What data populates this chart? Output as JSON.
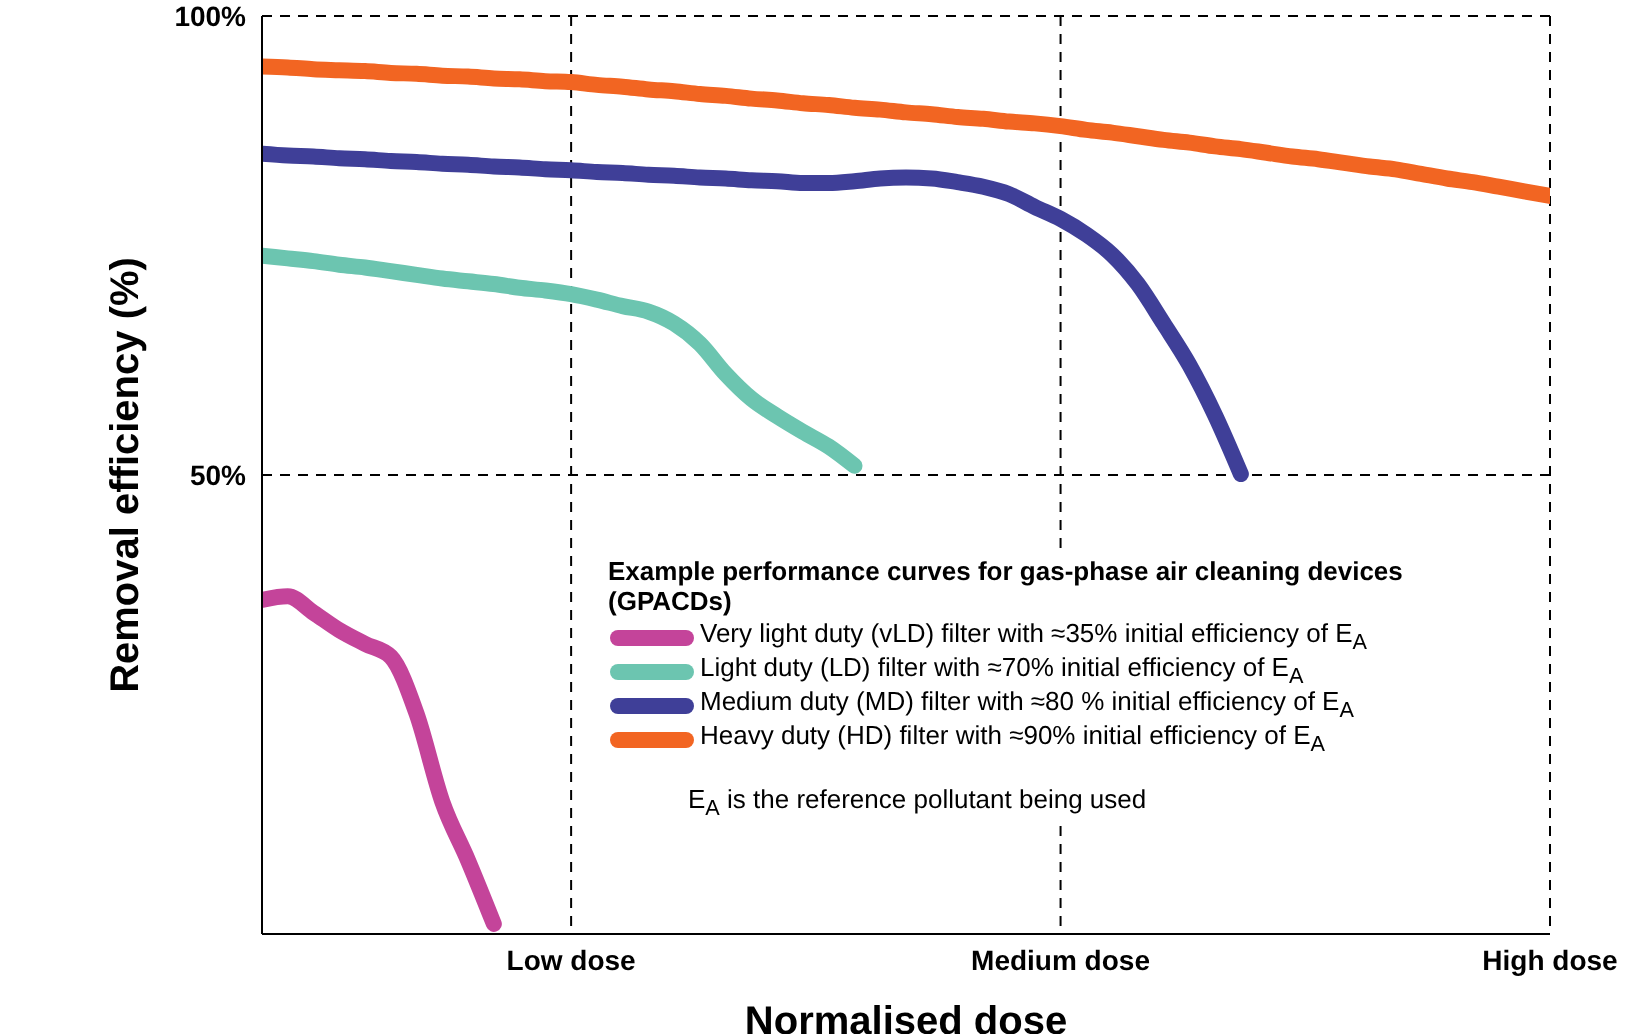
{
  "chart_data": {
    "type": "line",
    "xlabel": "Normalised dose",
    "ylabel": "Removal efficiency (%)",
    "categories": [
      null,
      null,
      null,
      null,
      null,
      null,
      null,
      null,
      null,
      null,
      null,
      null,
      "Low dose",
      null,
      null,
      null,
      null,
      null,
      null,
      null,
      null,
      null,
      null,
      null,
      null,
      null,
      null,
      null,
      null,
      null,
      null,
      "Medium dose",
      null,
      null,
      null,
      null,
      null,
      null,
      null,
      null,
      null,
      null,
      null,
      null,
      null,
      null,
      null,
      null,
      null,
      null,
      "High dose"
    ],
    "ylim": [
      0,
      100
    ],
    "yticks": [
      {
        "value": 50,
        "label": "50%"
      },
      {
        "value": 100,
        "label": "100%"
      }
    ],
    "grid": true,
    "legend": "bottom right",
    "legend_title": "Example performance curves for gas-phase air cleaning devices (GPACDs)",
    "annotations": [
      "E$_{A}$ is the reference pollutant being used"
    ],
    "series": [
      {
        "name": "Very light duty (vLD) filter with ≈35% initial efficiency of E$_{A}$",
        "color": "#c4449a",
        "values": [
          36.4,
          36.8,
          35,
          33.1,
          31.6,
          30.2,
          24,
          14.4,
          8,
          1.1,
          null,
          null,
          null,
          null,
          null,
          null,
          null,
          null,
          null,
          null,
          null,
          null,
          null,
          null,
          null,
          null,
          null,
          null,
          null,
          null,
          null,
          null,
          null,
          null,
          null,
          null,
          null,
          null,
          null,
          null,
          null,
          null,
          null,
          null,
          null,
          null,
          null,
          null,
          null,
          null,
          null
        ]
      },
      {
        "name": "Light duty (LD) filter with ≈70% initial efficiency of E$_{A}$",
        "color": "#6cc5b0",
        "values": [
          73.9,
          73.6,
          73.3,
          72.9,
          72.6,
          72.2,
          71.8,
          71.4,
          71.1,
          70.8,
          70.4,
          70.1,
          69.7,
          69.1,
          68.4,
          67.8,
          66.5,
          64.3,
          61,
          58.3,
          56.4,
          54.7,
          53.1,
          51,
          null,
          null,
          null,
          null,
          null,
          null,
          null,
          null,
          null,
          null,
          null,
          null,
          null,
          null,
          null,
          null,
          null,
          null,
          null,
          null,
          null,
          null,
          null,
          null,
          null,
          null,
          null
        ]
      },
      {
        "name": "Medium duty (MD) filter with ≈80 % initial efficiency of E$_{A}$",
        "color": "#3f3f98",
        "values": [
          85,
          84.8,
          84.7,
          84.5,
          84.4,
          84.2,
          84.1,
          83.9,
          83.8,
          83.6,
          83.5,
          83.3,
          83.2,
          83,
          82.9,
          82.7,
          82.6,
          82.4,
          82.3,
          82.1,
          82,
          81.8,
          81.8,
          82,
          82.3,
          82.4,
          82.3,
          81.9,
          81.4,
          80.6,
          79.2,
          77.9,
          76.2,
          74,
          70.8,
          66.5,
          62,
          56.5,
          50.1,
          null,
          null,
          null,
          null,
          null,
          null,
          null,
          null,
          null,
          null,
          null,
          null
        ]
      },
      {
        "name": "Heavy duty (HD) filter with ≈90% initial efficiency of E$_{A}$",
        "color": "#f26522",
        "values": [
          94.5,
          94.4,
          94.2,
          94.1,
          94,
          93.8,
          93.7,
          93.5,
          93.4,
          93.2,
          93.1,
          92.9,
          92.8,
          92.5,
          92.3,
          92,
          91.8,
          91.5,
          91.3,
          91,
          90.8,
          90.5,
          90.3,
          90,
          89.8,
          89.5,
          89.3,
          89,
          88.8,
          88.5,
          88.3,
          88,
          87.6,
          87.3,
          86.9,
          86.5,
          86.2,
          85.8,
          85.5,
          85.1,
          84.7,
          84.4,
          84,
          83.6,
          83.3,
          82.8,
          82.3,
          81.9,
          81.4,
          80.9,
          80.4
        ]
      }
    ]
  }
}
